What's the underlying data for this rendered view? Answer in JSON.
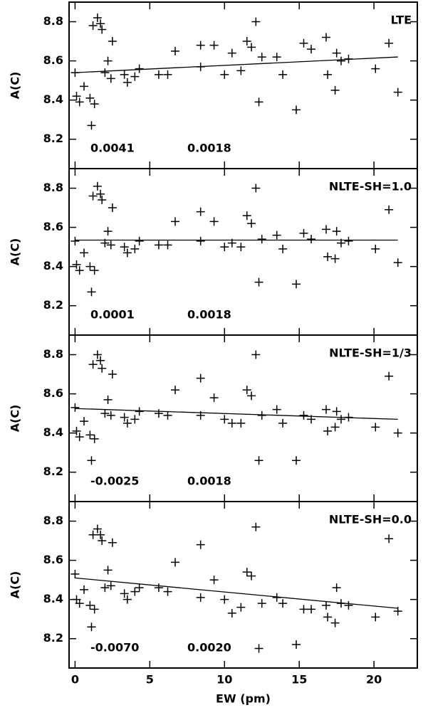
{
  "chart_data": [
    {
      "type": "scatter",
      "label": "LTE",
      "ylabel": "A(C)",
      "annotations": [
        "0.0041",
        "0.0018"
      ],
      "x": [
        0,
        0.1,
        0.3,
        0.6,
        1.0,
        1.3,
        1.1,
        1.2,
        1.5,
        1.7,
        1.8,
        2.0,
        2.2,
        2.4,
        2.5,
        3.3,
        3.5,
        4.0,
        4.3,
        5.6,
        6.2,
        6.7,
        8.4,
        8.4,
        9.3,
        10.0,
        10.5,
        11.1,
        11.5,
        11.8,
        12.1,
        12.3,
        12.5,
        13.5,
        13.9,
        14.8,
        15.3,
        15.8,
        16.8,
        16.9,
        17.4,
        17.5,
        17.8,
        18.3,
        20.1,
        21.0,
        21.6
      ],
      "values": [
        8.54,
        8.42,
        8.39,
        8.47,
        8.41,
        8.38,
        8.27,
        8.78,
        8.82,
        8.79,
        8.76,
        8.54,
        8.6,
        8.51,
        8.7,
        8.53,
        8.49,
        8.52,
        8.56,
        8.53,
        8.53,
        8.65,
        8.68,
        8.57,
        8.68,
        8.53,
        8.64,
        8.55,
        8.7,
        8.67,
        8.8,
        8.39,
        8.62,
        8.62,
        8.53,
        8.35,
        8.69,
        8.66,
        8.72,
        8.53,
        8.45,
        8.64,
        8.6,
        8.61,
        8.56,
        8.69,
        8.44
      ],
      "fit": {
        "x": [
          0,
          21.6
        ],
        "y": [
          8.54,
          8.62
        ]
      },
      "color": "#000000",
      "xlim": [
        -0.4,
        22.9
      ],
      "ylim": [
        8.05,
        8.9
      ],
      "xticks": [
        0,
        5,
        10,
        15,
        20
      ],
      "yticks": [
        8.2,
        8.4,
        8.6,
        8.8
      ]
    },
    {
      "type": "scatter",
      "label": "NLTE-SH=1.0",
      "ylabel": "A(C)",
      "annotations": [
        "0.0001",
        "0.0018"
      ],
      "x": [
        0,
        0.1,
        0.3,
        0.6,
        1.0,
        1.3,
        1.1,
        1.2,
        1.5,
        1.7,
        1.8,
        2.0,
        2.2,
        2.4,
        2.5,
        3.3,
        3.5,
        4.0,
        4.3,
        5.6,
        6.2,
        6.7,
        8.4,
        8.4,
        9.3,
        10.0,
        10.5,
        11.1,
        11.5,
        11.8,
        12.1,
        12.3,
        12.5,
        13.5,
        13.9,
        14.8,
        15.3,
        15.8,
        16.8,
        16.9,
        17.4,
        17.5,
        17.8,
        18.3,
        20.1,
        21.0,
        21.6
      ],
      "values": [
        8.53,
        8.41,
        8.38,
        8.47,
        8.4,
        8.38,
        8.27,
        8.76,
        8.81,
        8.77,
        8.74,
        8.52,
        8.58,
        8.51,
        8.7,
        8.5,
        8.47,
        8.49,
        8.53,
        8.51,
        8.51,
        8.63,
        8.68,
        8.53,
        8.63,
        8.5,
        8.52,
        8.5,
        8.66,
        8.62,
        8.8,
        8.32,
        8.54,
        8.56,
        8.49,
        8.31,
        8.57,
        8.54,
        8.59,
        8.45,
        8.44,
        8.58,
        8.52,
        8.53,
        8.49,
        8.69,
        8.42
      ],
      "fit": {
        "x": [
          0,
          21.6
        ],
        "y": [
          8.535,
          8.535
        ]
      },
      "color": "#000000",
      "xlim": [
        -0.4,
        22.9
      ],
      "ylim": [
        8.05,
        8.9
      ],
      "xticks": [
        0,
        5,
        10,
        15,
        20
      ],
      "yticks": [
        8.2,
        8.4,
        8.6,
        8.8
      ]
    },
    {
      "type": "scatter",
      "label": "NLTE-SH=1/3",
      "ylabel": "A(C)",
      "annotations": [
        "-0.0025",
        "0.0018"
      ],
      "x": [
        0,
        0.1,
        0.3,
        0.6,
        1.0,
        1.3,
        1.1,
        1.2,
        1.5,
        1.7,
        1.8,
        2.0,
        2.2,
        2.4,
        2.5,
        3.3,
        3.5,
        4.0,
        4.3,
        5.6,
        6.2,
        6.7,
        8.4,
        8.4,
        9.3,
        10.0,
        10.5,
        11.1,
        11.5,
        11.8,
        12.1,
        12.3,
        12.5,
        13.5,
        13.9,
        14.8,
        15.3,
        15.8,
        16.8,
        16.9,
        17.4,
        17.5,
        17.8,
        18.3,
        20.1,
        21.0,
        21.6
      ],
      "values": [
        8.53,
        8.41,
        8.38,
        8.46,
        8.39,
        8.37,
        8.26,
        8.75,
        8.8,
        8.77,
        8.73,
        8.5,
        8.57,
        8.49,
        8.7,
        8.48,
        8.45,
        8.47,
        8.51,
        8.5,
        8.49,
        8.62,
        8.68,
        8.49,
        8.58,
        8.47,
        8.45,
        8.45,
        8.62,
        8.59,
        8.8,
        8.26,
        8.49,
        8.52,
        8.45,
        8.26,
        8.49,
        8.47,
        8.52,
        8.41,
        8.43,
        8.51,
        8.47,
        8.48,
        8.43,
        8.69,
        8.4
      ],
      "fit": {
        "x": [
          0,
          21.6
        ],
        "y": [
          8.525,
          8.47
        ]
      },
      "color": "#000000",
      "xlim": [
        -0.4,
        22.9
      ],
      "ylim": [
        8.05,
        8.9
      ],
      "xticks": [
        0,
        5,
        10,
        15,
        20
      ],
      "yticks": [
        8.2,
        8.4,
        8.6,
        8.8
      ]
    },
    {
      "type": "scatter",
      "label": "NLTE-SH=0.0",
      "ylabel": "A(C)",
      "xlabel": "EW (pm)",
      "annotations": [
        "-0.0070",
        "0.0020"
      ],
      "x": [
        0,
        0.1,
        0.3,
        0.6,
        1.0,
        1.3,
        1.1,
        1.2,
        1.5,
        1.7,
        1.8,
        2.0,
        2.2,
        2.4,
        2.5,
        3.3,
        3.5,
        4.0,
        4.3,
        5.6,
        6.2,
        6.7,
        8.4,
        8.4,
        9.3,
        10.0,
        10.5,
        11.1,
        11.5,
        11.8,
        12.1,
        12.3,
        12.5,
        13.5,
        13.9,
        14.8,
        15.3,
        15.8,
        16.8,
        16.9,
        17.4,
        17.5,
        17.8,
        18.3,
        20.1,
        21.0,
        21.6
      ],
      "values": [
        8.53,
        8.4,
        8.38,
        8.45,
        8.37,
        8.35,
        8.26,
        8.73,
        8.76,
        8.73,
        8.7,
        8.46,
        8.55,
        8.47,
        8.69,
        8.43,
        8.4,
        8.44,
        8.46,
        8.46,
        8.44,
        8.59,
        8.68,
        8.41,
        8.5,
        8.4,
        8.33,
        8.36,
        8.54,
        8.52,
        8.77,
        8.15,
        8.38,
        8.41,
        8.38,
        8.17,
        8.35,
        8.35,
        8.37,
        8.31,
        8.28,
        8.46,
        8.38,
        8.37,
        8.31,
        8.71,
        8.34
      ],
      "fit": {
        "x": [
          0,
          21.6
        ],
        "y": [
          8.51,
          8.355
        ]
      },
      "color": "#000000",
      "xlim": [
        -0.4,
        22.9
      ],
      "ylim": [
        8.05,
        8.9
      ],
      "xticks": [
        0,
        5,
        10,
        15,
        20
      ],
      "yticks": [
        8.2,
        8.4,
        8.6,
        8.8
      ]
    }
  ]
}
